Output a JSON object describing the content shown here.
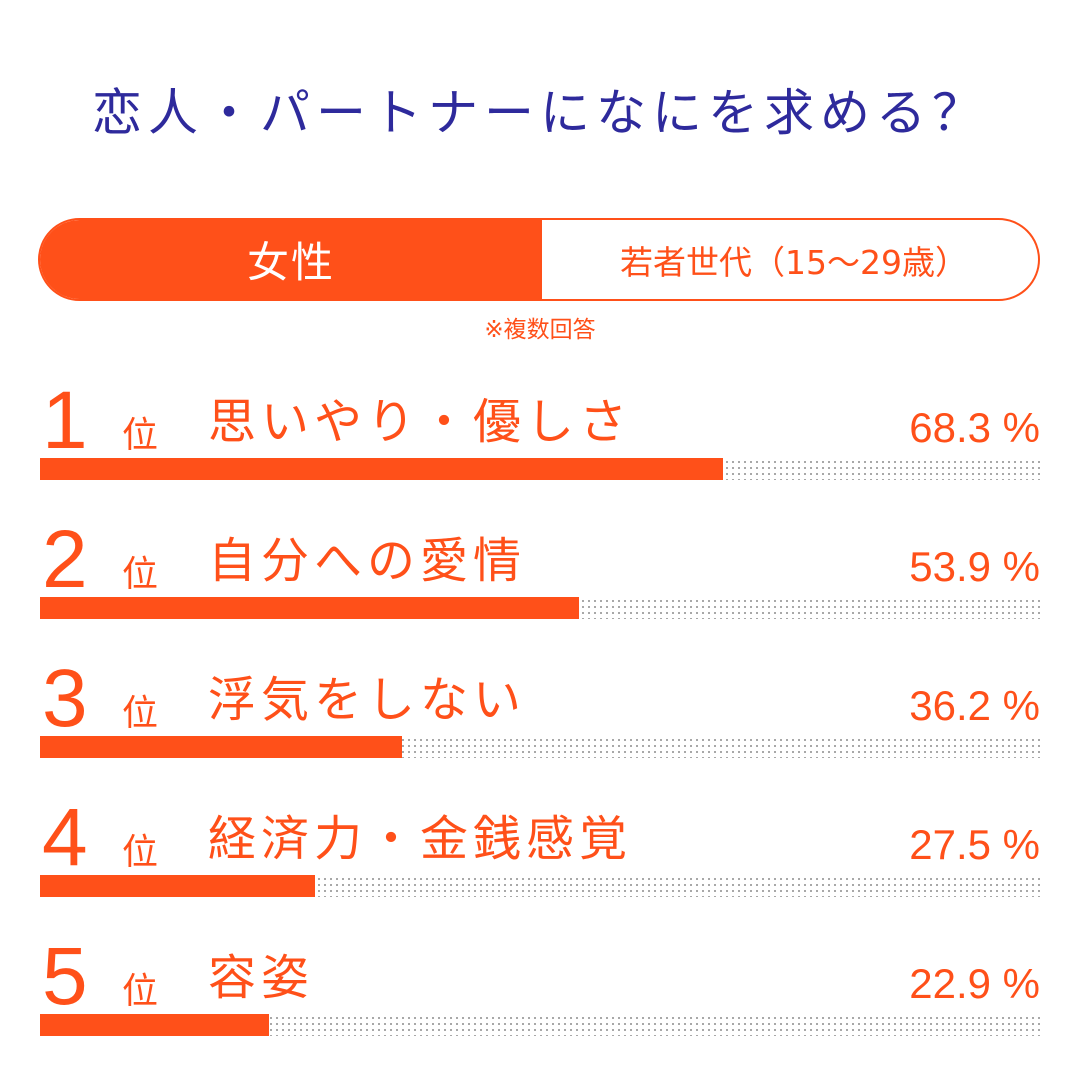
{
  "title": "恋人・パートナーになにを求める？",
  "segment": {
    "gender": "女性",
    "age_group": "若者世代（15〜29歳）"
  },
  "note": "※複数回答",
  "rank_suffix": "位",
  "colors": {
    "accent": "#ff5019",
    "title": "#2e2a9c"
  },
  "chart_data": {
    "type": "bar",
    "orientation": "horizontal",
    "title": "恋人・パートナーになにを求める？",
    "categories": [
      "思いやり・優しさ",
      "自分への愛情",
      "浮気をしない",
      "経済力・金銭感覚",
      "容姿"
    ],
    "values": [
      68.3,
      53.9,
      36.2,
      27.5,
      22.9
    ],
    "value_labels": [
      "68.3 %",
      "53.9 %",
      "36.2 %",
      "27.5 %",
      "22.9 %"
    ],
    "ranks": [
      "1",
      "2",
      "3",
      "4",
      "5"
    ],
    "xlim": [
      0,
      100
    ],
    "unit": "%"
  }
}
